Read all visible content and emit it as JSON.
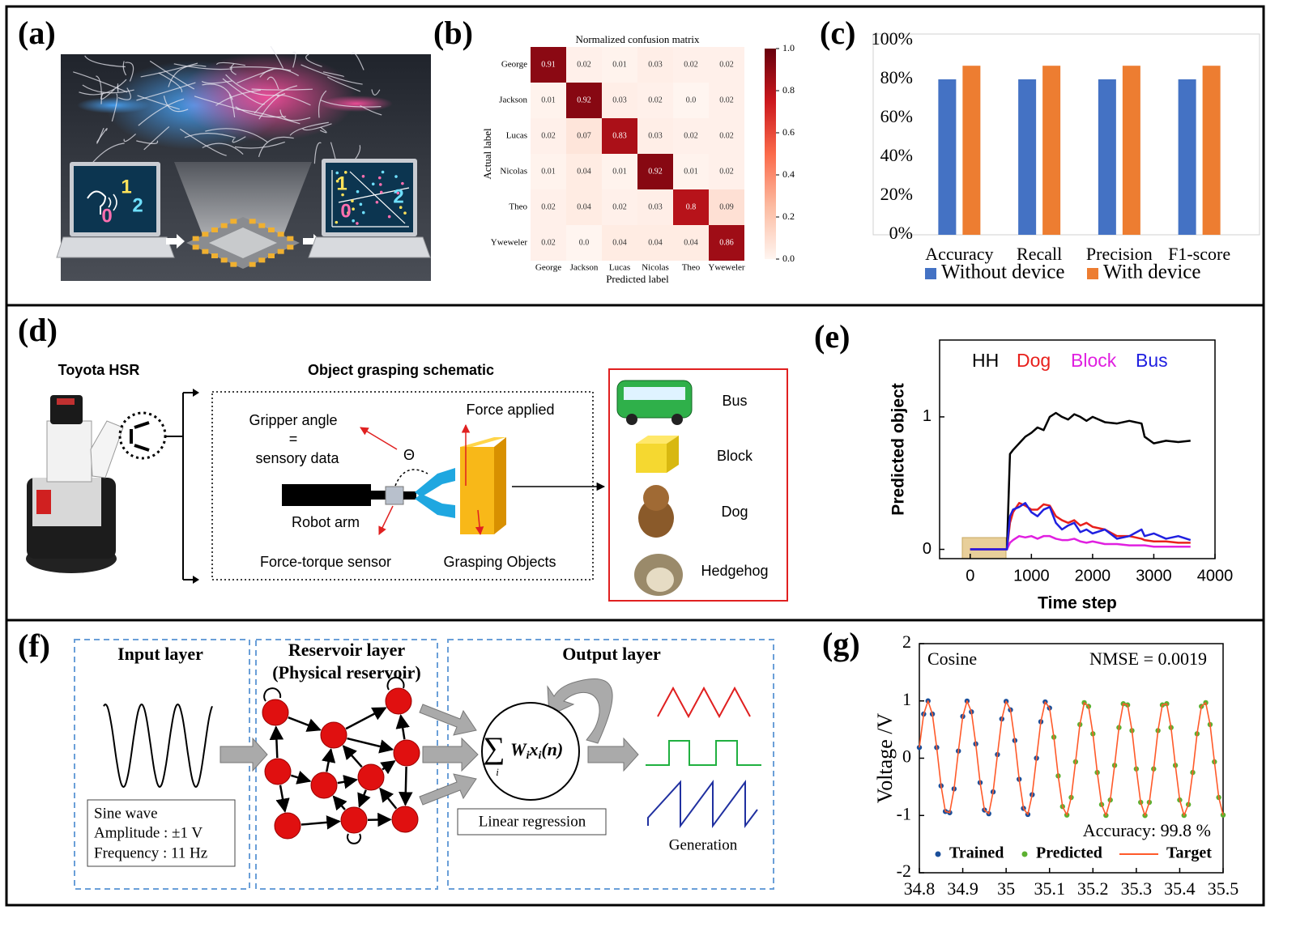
{
  "panel_labels": [
    "(a)",
    "(b)",
    "(c)",
    "(d)",
    "(e)",
    "(f)",
    "(g)"
  ],
  "panel_a": {
    "left_screen": [
      "1",
      "0",
      "2"
    ],
    "right_screen": [
      "1",
      "0",
      "2"
    ]
  },
  "chart_data": [
    {
      "type": "heatmap",
      "title": "Normalized confusion matrix",
      "xlabel": "Predicted label",
      "ylabel": "Actual label",
      "categories": [
        "George",
        "Jackson",
        "Lucas",
        "Nicolas",
        "Theo",
        "Yweweler"
      ],
      "values": [
        [
          0.91,
          0.02,
          0.01,
          0.03,
          0.02,
          0.02
        ],
        [
          0.01,
          0.92,
          0.03,
          0.02,
          0,
          0.02
        ],
        [
          0.02,
          0.07,
          0.83,
          0.03,
          0.02,
          0.02
        ],
        [
          0.01,
          0.04,
          0.01,
          0.92,
          0.01,
          0.02
        ],
        [
          0.02,
          0.04,
          0.02,
          0.03,
          0.8,
          0.09
        ],
        [
          0.02,
          0,
          0.04,
          0.04,
          0.04,
          0.86
        ]
      ],
      "value_labels": [
        [
          "0.91",
          "0.02",
          "0.01",
          "0.03",
          "0.02",
          "0.02"
        ],
        [
          "0.01",
          "0.92",
          "0.03",
          "0.02",
          "0.0",
          "0.02"
        ],
        [
          "0.02",
          "0.07",
          "0.83",
          "0.03",
          "0.02",
          "0.02"
        ],
        [
          "0.01",
          "0.04",
          "0.01",
          "0.92",
          "0.01",
          "0.02"
        ],
        [
          "0.02",
          "0.04",
          "0.02",
          "0.03",
          "0.8",
          "0.09"
        ],
        [
          "0.02",
          "0.0",
          "0.04",
          "0.04",
          "0.04",
          "0.86"
        ]
      ],
      "colorbar": {
        "lim": [
          0,
          1
        ],
        "ticks": [
          {
            "value": 0,
            "label": "0.0"
          },
          0.2,
          0.4,
          0.6,
          0.8,
          {
            "value": 1,
            "label": "1.0"
          }
        ],
        "colors": [
          "#fff5f0",
          "#fcbba1",
          "#fb6a4a",
          "#cb181d",
          "#67000d"
        ]
      }
    },
    {
      "type": "bar",
      "categories": [
        "Accuracy",
        "Recall",
        "Precision",
        "F1-score"
      ],
      "series": [
        {
          "name": "Without device",
          "color": "#4472c4",
          "values": [
            80,
            80,
            80,
            80
          ]
        },
        {
          "name": "With device",
          "color": "#ed7d31",
          "values": [
            87,
            87,
            87,
            87
          ]
        }
      ],
      "ylim": [
        0,
        100
      ],
      "yticks": [
        {
          "value": 0,
          "label": "0%"
        },
        {
          "value": 20,
          "label": "20%"
        },
        {
          "value": 40,
          "label": "40%"
        },
        {
          "value": 60,
          "label": "60%"
        },
        {
          "value": 80,
          "label": "80%"
        },
        {
          "value": 100,
          "label": "100%"
        }
      ],
      "legend": "bottom"
    },
    {
      "type": "line",
      "xlabel": "Time step",
      "ylabel": "Predicted object",
      "x": [
        0,
        600,
        650,
        700,
        800,
        900,
        1000,
        1100,
        1200,
        1300,
        1400,
        1500,
        1600,
        1700,
        1800,
        1900,
        2000,
        2200,
        2400,
        2600,
        2800,
        2850,
        3000,
        3200,
        3400,
        3600
      ],
      "series": [
        {
          "name": "HH",
          "color": "#000000",
          "values": [
            0,
            0,
            0.72,
            0.75,
            0.8,
            0.85,
            0.88,
            0.92,
            0.9,
            1.0,
            1.03,
            1.0,
            0.98,
            1.02,
            1.0,
            0.97,
            1.0,
            0.96,
            0.95,
            0.97,
            0.95,
            0.85,
            0.8,
            0.82,
            0.81,
            0.82
          ]
        },
        {
          "name": "Dog",
          "color": "#e8201c",
          "values": [
            0,
            0,
            0.2,
            0.28,
            0.35,
            0.33,
            0.3,
            0.3,
            0.34,
            0.33,
            0.25,
            0.22,
            0.2,
            0.22,
            0.18,
            0.2,
            0.17,
            0.15,
            0.1,
            0.1,
            0.08,
            0.07,
            0.06,
            0.06,
            0.05,
            0.05
          ]
        },
        {
          "name": "Block",
          "color": "#e020e0",
          "values": [
            0,
            0,
            0.05,
            0.07,
            0.1,
            0.09,
            0.1,
            0.08,
            0.1,
            0.1,
            0.08,
            0.07,
            0.07,
            0.08,
            0.06,
            0.05,
            0.06,
            0.04,
            0.04,
            0.03,
            0.03,
            0.03,
            0.02,
            0.02,
            0.02,
            0.02
          ]
        },
        {
          "name": "Bus",
          "color": "#2020e0",
          "values": [
            0,
            0,
            0.25,
            0.3,
            0.32,
            0.35,
            0.28,
            0.25,
            0.3,
            0.32,
            0.2,
            0.15,
            0.18,
            0.2,
            0.13,
            0.15,
            0.12,
            0.15,
            0.08,
            0.1,
            0.15,
            0.1,
            0.12,
            0.08,
            0.1,
            0.07
          ]
        }
      ],
      "xlim": [
        -500,
        4000
      ],
      "ylim": [
        -0.07,
        1.58
      ],
      "xticks": [
        0,
        1000,
        2000,
        3000,
        4000
      ],
      "yticks": [
        0,
        1
      ],
      "legend": "top-left"
    },
    {
      "type": "line",
      "ylabel": "Voltage /V",
      "annotations": [
        "Cosine",
        "NMSE = 0.0019",
        "Accuracy: 99.8 %"
      ],
      "x": [
        34.8,
        34.81,
        34.82,
        34.83,
        34.84,
        34.85,
        34.86,
        34.87,
        34.88,
        34.89,
        34.9,
        34.91,
        34.92,
        34.93,
        34.94,
        34.95,
        34.96,
        34.97,
        34.98,
        34.99,
        35,
        35.01,
        35.02,
        35.03,
        35.04,
        35.05,
        35.06,
        35.07,
        35.08,
        35.09,
        35.1,
        35.11,
        35.12,
        35.13,
        35.14,
        35.15,
        35.16,
        35.17,
        35.18,
        35.19,
        35.2,
        35.21,
        35.22,
        35.23,
        35.24,
        35.25,
        35.26,
        35.27,
        35.28,
        35.29,
        35.3,
        35.31,
        35.32,
        35.33,
        35.34,
        35.35,
        35.36,
        35.37,
        35.38,
        35.39,
        35.4,
        35.41,
        35.42,
        35.43,
        35.44,
        35.45,
        35.46,
        35.47,
        35.48,
        35.49,
        35.5
      ],
      "series": [
        {
          "name": "Trained",
          "color": "#1b4f9a",
          "marker": "dot",
          "values": [
            0.187,
            0.771,
            1.0,
            0.771,
            0.187,
            -0.482,
            -0.93,
            -0.951,
            -0.536,
            0.125,
            0.729,
            0.998,
            0.809,
            0.249,
            -0.426,
            -0.905,
            -0.969,
            -0.588,
            0.063,
            0.685,
            0.992,
            0.844,
            0.309,
            -0.368,
            -0.876,
            -0.982,
            -0.637,
            0,
            0.637,
            0.982,
            0.876,
            null,
            null,
            null,
            null,
            null,
            null,
            null,
            null,
            null,
            null,
            null,
            null,
            null,
            null,
            null,
            null,
            null,
            null,
            null,
            null,
            null,
            null,
            null,
            null,
            null,
            null,
            null,
            null,
            null,
            null,
            null,
            null,
            null,
            null,
            null,
            null,
            null,
            null,
            null,
            null
          ]
        },
        {
          "name": "Predicted",
          "color": "#5cb030",
          "marker": "dot",
          "values": [
            null,
            null,
            null,
            null,
            null,
            null,
            null,
            null,
            null,
            null,
            null,
            null,
            null,
            null,
            null,
            null,
            null,
            null,
            null,
            null,
            null,
            null,
            null,
            null,
            null,
            null,
            null,
            null,
            null,
            null,
            null,
            0.368,
            -0.309,
            -0.844,
            -0.992,
            -0.685,
            -0.063,
            0.588,
            0.969,
            0.905,
            0.426,
            -0.249,
            -0.809,
            -0.998,
            -0.729,
            -0.125,
            0.536,
            0.951,
            0.93,
            0.482,
            -0.187,
            -0.771,
            -1,
            -0.771,
            -0.187,
            0.482,
            0.93,
            0.951,
            0.536,
            -0.125,
            -0.729,
            -0.998,
            -0.809,
            -0.249,
            0.426,
            0.905,
            0.969,
            0.588,
            -0.063,
            -0.685,
            -0.992
          ]
        },
        {
          "name": "Target",
          "color": "#ff5a2a",
          "marker": "line",
          "values": [
            0.187,
            0.771,
            1.0,
            0.771,
            0.187,
            -0.482,
            -0.93,
            -0.951,
            -0.536,
            0.125,
            0.729,
            0.998,
            0.809,
            0.249,
            -0.426,
            -0.905,
            -0.969,
            -0.588,
            0.063,
            0.685,
            0.992,
            0.844,
            0.309,
            -0.368,
            -0.876,
            -0.982,
            -0.637,
            0,
            0.637,
            0.982,
            0.876,
            0.368,
            -0.309,
            -0.844,
            -0.992,
            -0.685,
            -0.063,
            0.588,
            0.969,
            0.905,
            0.426,
            -0.249,
            -0.809,
            -0.998,
            -0.729,
            -0.125,
            0.536,
            0.951,
            0.93,
            0.482,
            -0.187,
            -0.771,
            -1,
            -0.771,
            -0.187,
            0.482,
            0.93,
            0.951,
            0.536,
            -0.125,
            -0.729,
            -0.998,
            -0.809,
            -0.249,
            0.426,
            0.905,
            0.969,
            0.588,
            -0.063,
            -0.685,
            -0.992
          ]
        }
      ],
      "xlim": [
        34.8,
        35.5
      ],
      "ylim": [
        -2,
        2
      ],
      "xticks": [
        34.8,
        34.9,
        35,
        35.1,
        35.2,
        35.3,
        35.4,
        35.5
      ],
      "yticks": [
        -2,
        -1,
        0,
        1,
        2
      ],
      "legend": "bottom"
    }
  ],
  "panel_d": {
    "robot": "Toyota HSR",
    "schematic_title": "Object grasping schematic",
    "gripper": [
      "Gripper angle",
      "=",
      "sensory data"
    ],
    "angle": "Θ",
    "force": "Force applied",
    "arm": "Robot arm",
    "sensor": "Force-torque sensor",
    "objects_label": "Grasping Objects",
    "objects": [
      "Bus",
      "Block",
      "Dog",
      "Hedgehog"
    ]
  },
  "panel_f": {
    "input_title": "Input layer",
    "reservoir_title": [
      "Reservoir layer",
      "(Physical reservoir)"
    ],
    "output_title": "Output layer",
    "input_box": [
      "Sine wave",
      "Amplitude : ±1 V",
      "Frequency : 11 Hz"
    ],
    "formula": [
      "∑",
      "i",
      "W",
      "i",
      "x",
      "i",
      "(n)"
    ],
    "regression": "Linear regression",
    "generation": "Generation"
  }
}
